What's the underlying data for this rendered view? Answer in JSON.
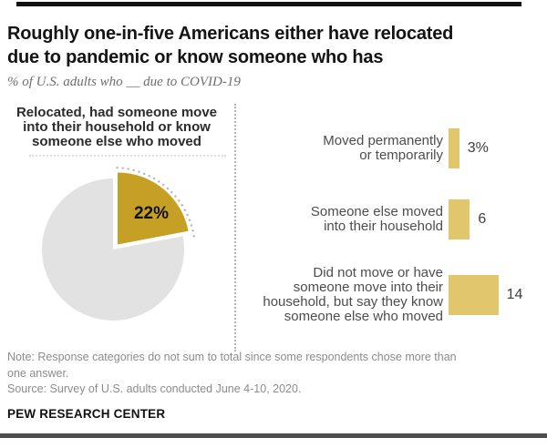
{
  "header": {
    "title": "Roughly one-in-five Americans either have relocated\ndue to pandemic or know someone who has",
    "subtitle": "% of U.S. adults who __ due to COVID-19"
  },
  "pie_section": {
    "heading": "Relocated, had someone move\ninto their household or know\nsomeone else who moved",
    "slice_label": "22%"
  },
  "bar_section": {
    "rows": [
      {
        "label": "Moved permanently\nor temporarily",
        "value_label": "3%",
        "value": 3
      },
      {
        "label": "Someone else moved\ninto their household",
        "value_label": "6",
        "value": 6
      },
      {
        "label": "Did not move or have\nsomeone move into their\nhousehold, but say they know\nsomeone else who moved",
        "value_label": "14",
        "value": 14
      }
    ]
  },
  "footer": {
    "note": "Note: Response categories do not sum to total since some respondents chose more than\none answer.",
    "source": "Source: Survey of U.S. adults conducted June 4-10, 2020.",
    "brand": "PEW RESEARCH CENTER"
  },
  "colors": {
    "highlight_gold": "#C6A025",
    "bar_tan": "#E2C66C",
    "pie_remainder_gray": "#E2E2E2",
    "dotted_gray": "#B8B8B8",
    "text_dark": "#141414",
    "text_gray": "#8C8C8C"
  },
  "chart_data": [
    {
      "type": "pie",
      "title": "Relocated, had someone move into their household or know someone else who moved",
      "labels": [
        "Relocated, had someone move into their household or know someone else who moved",
        "Remainder"
      ],
      "values": [
        22,
        78
      ],
      "value_labels": [
        "22%",
        ""
      ],
      "highlight_index": 0,
      "highlight_color": "#C6A025",
      "remainder_color": "#E2E2E2",
      "annotations": [
        "dotted arc outlining highlighted 22% slice"
      ]
    },
    {
      "type": "bar",
      "orientation": "horizontal",
      "categories": [
        "Moved permanently or temporarily",
        "Someone else moved into their household",
        "Did not move or have someone move into their household, but say they know someone else who moved"
      ],
      "values": [
        3,
        6,
        14
      ],
      "value_labels": [
        "3%",
        "6",
        "14"
      ],
      "xlim": [
        0,
        22
      ],
      "bar_color": "#E2C66C",
      "grid": false,
      "legend": "none"
    }
  ]
}
